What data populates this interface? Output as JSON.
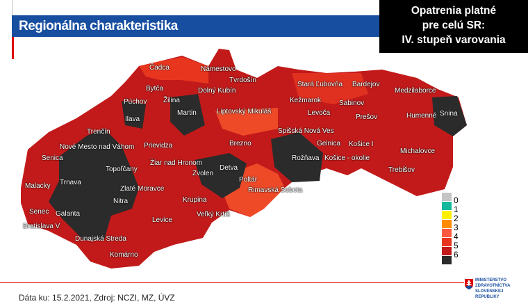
{
  "header": {
    "title": "Regionálna charakteristika"
  },
  "notice": {
    "lines": [
      "Opatrenia platné",
      "pre celú SR:",
      "IV. stupeň varovania"
    ]
  },
  "legend": {
    "labels": [
      "0",
      "1",
      "2",
      "3",
      "4",
      "5",
      "6"
    ],
    "colors": [
      "#c4c4c4",
      "#14b89a",
      "#fff000",
      "#ff8c00",
      "#ff5a40",
      "#e8361e",
      "#c21a1a",
      "#2b2b2b"
    ]
  },
  "map": {
    "districts": [
      "Čadca",
      "Námestovo",
      "Tvrdošín",
      "Bytča",
      "Dolný Kubín",
      "Žilina",
      "Púchov",
      "Martin",
      "Liptovský Mikuláš",
      "Stará Ľubovňa",
      "Bardejov",
      "Medzilaborce",
      "Kežmarok",
      "Sabinov",
      "Levoča",
      "Humenné",
      "Snina",
      "Ilava",
      "Prešov",
      "Trenčín",
      "Spišská Nová Ves",
      "Nové Mesto nad Váhom",
      "Prievidza",
      "Brezno",
      "Gelnica",
      "Košice I",
      "Senica",
      "Rožňava",
      "Košice - okolie",
      "Michalovce",
      "Žiar nad Hronom",
      "Detva",
      "Topoľčany",
      "Zvolen",
      "Trebišov",
      "Malacky",
      "Trnava",
      "Zlaté Moravce",
      "Poltár",
      "Rimavská Sobota",
      "Nitra",
      "Krupina",
      "Senec",
      "Galanta",
      "Levice",
      "Veľký Krtíš",
      "Bratislava V",
      "Dunajská Streda",
      "Komárno"
    ]
  },
  "footer": {
    "source": "Dáta ku: 15.2.2021, Zdroj: NCZI, MZ, ÚVZ"
  },
  "logo": {
    "lines": [
      "MINISTERSTVO",
      "ZDRAVOTNÍCTVA",
      "SLOVENSKEJ REPUBLIKY"
    ]
  }
}
